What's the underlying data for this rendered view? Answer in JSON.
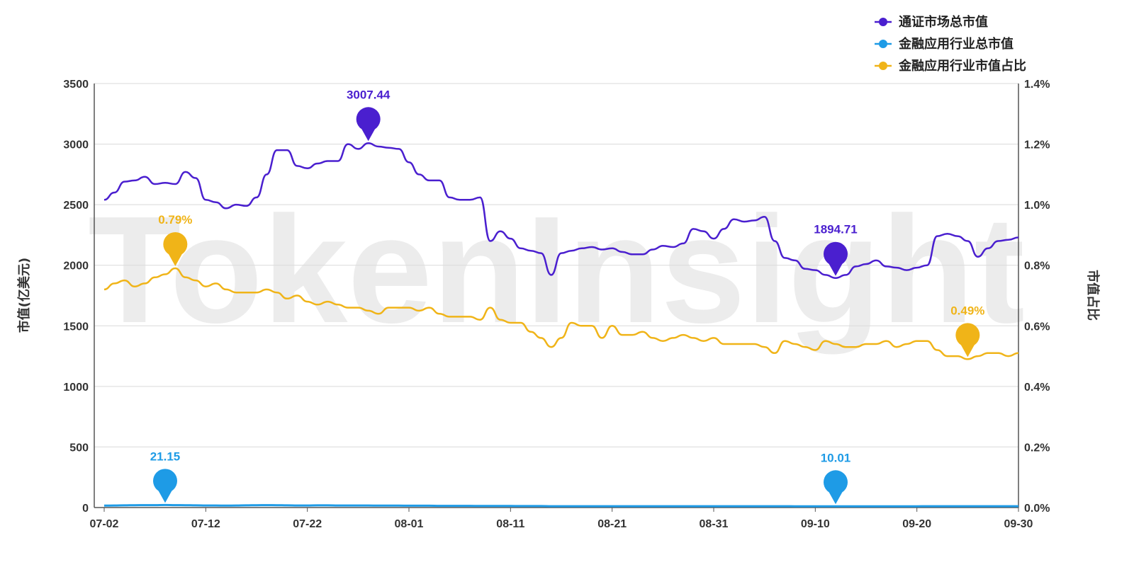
{
  "watermark": "TokenInsight",
  "chart_data": {
    "type": "line",
    "x": [
      "07-02",
      "07-03",
      "07-04",
      "07-05",
      "07-06",
      "07-07",
      "07-08",
      "07-09",
      "07-10",
      "07-11",
      "07-12",
      "07-13",
      "07-14",
      "07-15",
      "07-16",
      "07-17",
      "07-18",
      "07-19",
      "07-20",
      "07-21",
      "07-22",
      "07-23",
      "07-24",
      "07-25",
      "07-26",
      "07-27",
      "07-28",
      "07-29",
      "07-30",
      "07-31",
      "08-01",
      "08-02",
      "08-03",
      "08-04",
      "08-05",
      "08-06",
      "08-07",
      "08-08",
      "08-09",
      "08-10",
      "08-11",
      "08-12",
      "08-13",
      "08-14",
      "08-15",
      "08-16",
      "08-17",
      "08-18",
      "08-19",
      "08-20",
      "08-21",
      "08-22",
      "08-23",
      "08-24",
      "08-25",
      "08-26",
      "08-27",
      "08-28",
      "08-29",
      "08-30",
      "08-31",
      "09-01",
      "09-02",
      "09-03",
      "09-04",
      "09-05",
      "09-06",
      "09-07",
      "09-08",
      "09-09",
      "09-10",
      "09-11",
      "09-12",
      "09-13",
      "09-14",
      "09-15",
      "09-16",
      "09-17",
      "09-18",
      "09-19",
      "09-20",
      "09-21",
      "09-22",
      "09-23",
      "09-24",
      "09-25",
      "09-26",
      "09-27",
      "09-28",
      "09-29",
      "09-30"
    ],
    "x_tick_labels": [
      "07-02",
      "07-12",
      "07-22",
      "08-01",
      "08-11",
      "08-21",
      "08-31",
      "09-10",
      "09-20",
      "09-30"
    ],
    "y_left": {
      "label": "市值(亿美元)",
      "ticks": [
        "0",
        "500",
        "1000",
        "1500",
        "2000",
        "2500",
        "3000",
        "3500"
      ],
      "range": [
        0,
        3500
      ]
    },
    "y_right": {
      "label": "市值占比",
      "ticks": [
        "0.0%",
        "0.2%",
        "0.4%",
        "0.6%",
        "0.8%",
        "1.0%",
        "1.2%",
        "1.4%"
      ],
      "range": [
        0,
        1.4
      ]
    },
    "grid": true,
    "legend_position": "top-right",
    "series": [
      {
        "name": "通证市场总市值",
        "axis": "left",
        "color": "#4a1fcf",
        "values": [
          2540,
          2600,
          2690,
          2700,
          2730,
          2670,
          2680,
          2670,
          2770,
          2720,
          2540,
          2520,
          2470,
          2500,
          2490,
          2560,
          2750,
          2950,
          2950,
          2820,
          2800,
          2840,
          2860,
          2860,
          3000,
          2960,
          3007.44,
          2980,
          2970,
          2960,
          2850,
          2750,
          2700,
          2700,
          2560,
          2540,
          2540,
          2560,
          2200,
          2280,
          2220,
          2140,
          2120,
          2100,
          1920,
          2100,
          2120,
          2140,
          2150,
          2130,
          2140,
          2110,
          2090,
          2090,
          2130,
          2160,
          2150,
          2180,
          2300,
          2280,
          2220,
          2300,
          2380,
          2360,
          2370,
          2400,
          2200,
          2060,
          2040,
          1970,
          1960,
          1920,
          1894.71,
          1920,
          1990,
          2010,
          2040,
          1990,
          1980,
          1960,
          1980,
          2000,
          2240,
          2260,
          2240,
          2200,
          2070,
          2140,
          2200,
          2210,
          2230
        ]
      },
      {
        "name": "金融应用行业总市值",
        "axis": "left",
        "color": "#1e9be6",
        "values": [
          16,
          17,
          18,
          19,
          20,
          20,
          21.15,
          20,
          19,
          18,
          17,
          17,
          16,
          17,
          18,
          19,
          20,
          19,
          18,
          17,
          17,
          18,
          18,
          17,
          17,
          17,
          17,
          16,
          16,
          16,
          15,
          15,
          15,
          14,
          14,
          14,
          14,
          13,
          13,
          13,
          13,
          12,
          12,
          12,
          11,
          11,
          11,
          11,
          11,
          11,
          11,
          11,
          11,
          11,
          11,
          11,
          11,
          11,
          11,
          11,
          11,
          11,
          11,
          11,
          11,
          11,
          11,
          11,
          10.5,
          10.5,
          10.3,
          10.2,
          10.01,
          10.1,
          10.2,
          10.3,
          10.4,
          10.5,
          10.6,
          10.7,
          10.8,
          10.9,
          11,
          11,
          11,
          11,
          11,
          11,
          11,
          11,
          11
        ]
      },
      {
        "name": "金融应用行业市值占比",
        "axis": "right",
        "color": "#f0b418",
        "values": [
          0.72,
          0.74,
          0.75,
          0.73,
          0.74,
          0.76,
          0.77,
          0.79,
          0.76,
          0.75,
          0.73,
          0.74,
          0.72,
          0.71,
          0.71,
          0.71,
          0.72,
          0.71,
          0.69,
          0.7,
          0.68,
          0.67,
          0.68,
          0.67,
          0.66,
          0.66,
          0.65,
          0.64,
          0.66,
          0.66,
          0.66,
          0.65,
          0.66,
          0.64,
          0.63,
          0.63,
          0.63,
          0.62,
          0.66,
          0.62,
          0.61,
          0.61,
          0.58,
          0.56,
          0.53,
          0.56,
          0.61,
          0.6,
          0.6,
          0.56,
          0.6,
          0.57,
          0.57,
          0.58,
          0.56,
          0.55,
          0.56,
          0.57,
          0.56,
          0.55,
          0.56,
          0.54,
          0.54,
          0.54,
          0.54,
          0.53,
          0.51,
          0.55,
          0.54,
          0.53,
          0.52,
          0.55,
          0.54,
          0.53,
          0.53,
          0.54,
          0.54,
          0.55,
          0.53,
          0.54,
          0.55,
          0.55,
          0.52,
          0.5,
          0.5,
          0.49,
          0.5,
          0.51,
          0.51,
          0.5,
          0.51
        ]
      }
    ],
    "annotations": [
      {
        "series": 0,
        "index": 26,
        "label": "3007.44"
      },
      {
        "series": 0,
        "index": 72,
        "label": "1894.71"
      },
      {
        "series": 1,
        "index": 6,
        "label": "21.15"
      },
      {
        "series": 1,
        "index": 72,
        "label": "10.01"
      },
      {
        "series": 2,
        "index": 7,
        "label": "0.79%"
      },
      {
        "series": 2,
        "index": 85,
        "label": "0.49%"
      }
    ]
  }
}
